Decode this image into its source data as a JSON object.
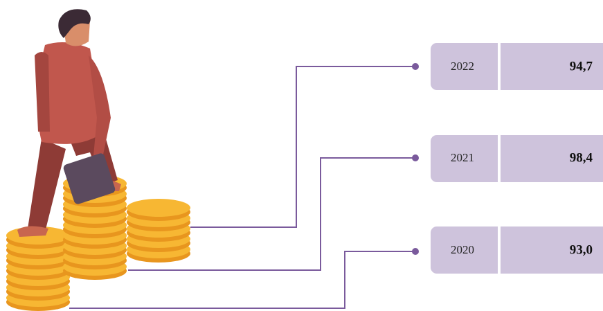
{
  "rows": [
    {
      "year": "2022",
      "value": "94,7"
    },
    {
      "year": "2021",
      "value": "98,4"
    },
    {
      "year": "2020",
      "value": "93,0"
    }
  ]
}
